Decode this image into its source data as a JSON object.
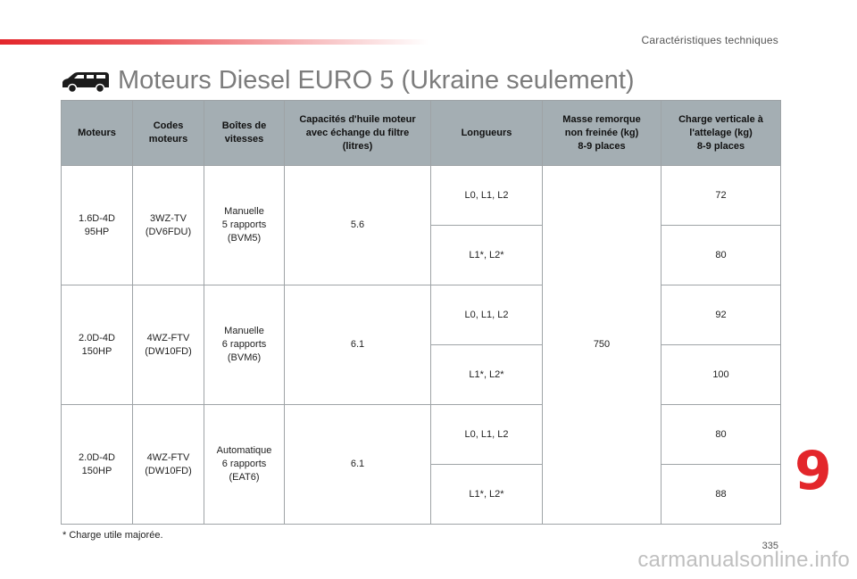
{
  "header": {
    "section_title": "Caractéristiques techniques",
    "title": "Moteurs Diesel EURO 5 (Ukraine seulement)",
    "icon": "van-icon"
  },
  "table": {
    "columns": [
      "Moteurs",
      "Codes\nmoteurs",
      "Boîtes de\nvitesses",
      "Capacités d'huile moteur\navec échange du filtre\n(litres)",
      "Longueurs",
      "Masse remorque\nnon freinée (kg)\n8-9 places",
      "Charge verticale à\nl'attelage (kg)\n8-9 places"
    ],
    "engines": [
      {
        "moteur": "1.6D-4D\n95HP",
        "code": "3WZ-TV\n(DV6FDU)",
        "boite": "Manuelle\n5 rapports\n(BVM5)",
        "huile": "5.6",
        "rows": [
          {
            "longueur": "L0, L1, L2",
            "charge": "72"
          },
          {
            "longueur": "L1*, L2*",
            "charge": "80"
          }
        ]
      },
      {
        "moteur": "2.0D-4D\n150HP",
        "code": "4WZ-FTV\n(DW10FD)",
        "boite": "Manuelle\n6 rapports\n(BVM6)",
        "huile": "6.1",
        "rows": [
          {
            "longueur": "L0, L1, L2",
            "charge": "92"
          },
          {
            "longueur": "L1*, L2*",
            "charge": "100"
          }
        ]
      },
      {
        "moteur": "2.0D-4D\n150HP",
        "code": "4WZ-FTV\n(DW10FD)",
        "boite": "Automatique\n6 rapports\n(EAT6)",
        "huile": "6.1",
        "rows": [
          {
            "longueur": "L0, L1, L2",
            "charge": "80"
          },
          {
            "longueur": "L1*, L2*",
            "charge": "88"
          }
        ]
      }
    ],
    "masse_remorque": "750"
  },
  "footnote": "* Charge utile majorée.",
  "chapter_number": "9",
  "page_number": "335",
  "watermark": "carmanualsonline.info",
  "colors": {
    "accent": "#e3262b",
    "header_bg": "#a4aeb3",
    "border": "#9ea3a6",
    "title": "#7c7c7c"
  }
}
